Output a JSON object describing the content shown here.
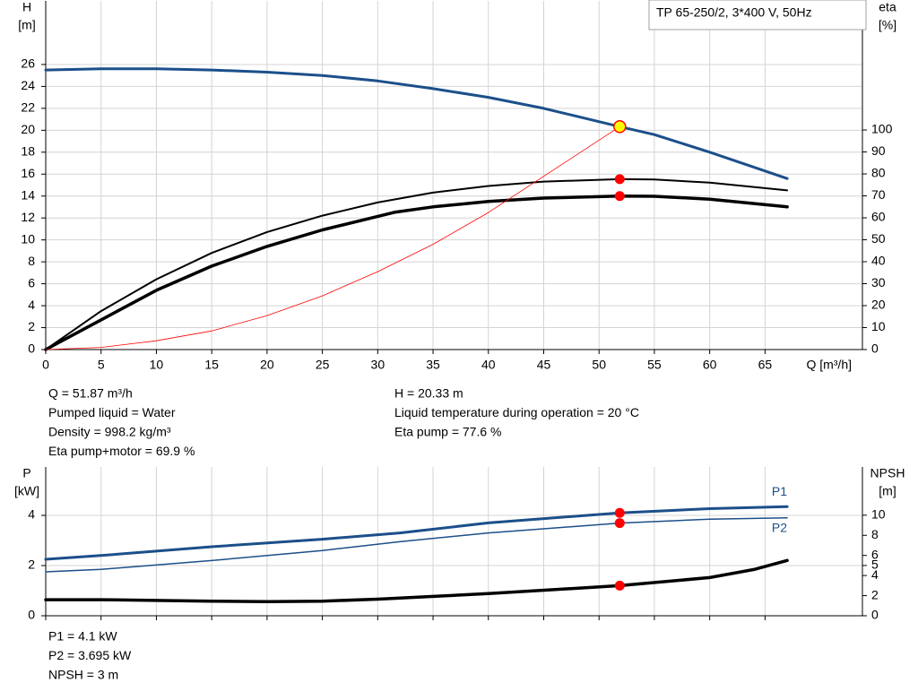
{
  "chart_data": [
    {
      "type": "line",
      "title": "TP 65-250/2, 3*400 V, 50Hz",
      "x_label": "Q [m³/h]",
      "y_label": "H",
      "y_unit": "[m]",
      "y2_label": "eta",
      "y2_unit": "[%]",
      "xlim": [
        0,
        73.8
      ],
      "xticks": [
        0,
        5,
        10,
        15,
        20,
        25,
        30,
        35,
        40,
        45,
        50,
        55,
        60,
        65
      ],
      "ylim": [
        0,
        31.8
      ],
      "yticks": [
        0,
        2,
        4,
        6,
        8,
        10,
        12,
        14,
        16,
        18,
        20,
        22,
        24,
        26
      ],
      "y2lim": [
        0,
        158.8
      ],
      "y2ticks": [
        0,
        10,
        20,
        30,
        40,
        50,
        60,
        70,
        80,
        90,
        100
      ],
      "grid": true,
      "series": [
        {
          "color": "#1b4f8a",
          "width": 3,
          "x": [
            0,
            5,
            10,
            15,
            20,
            25,
            30,
            35,
            40,
            45,
            51.87,
            55,
            60,
            67
          ],
          "values": [
            25.5,
            25.6,
            25.6,
            25.5,
            25.3,
            25.0,
            24.5,
            23.8,
            23.0,
            22.0,
            20.33,
            19.6,
            18.0,
            15.6
          ]
        },
        {
          "color": "#000000",
          "width": 2,
          "axis": "y2",
          "x": [
            0,
            5,
            10,
            15,
            20,
            25,
            30,
            35,
            40,
            45,
            51.87,
            55,
            60,
            67
          ],
          "values": [
            0,
            17.5,
            32,
            44,
            53.5,
            61,
            67,
            71.5,
            74.5,
            76.5,
            77.6,
            77.5,
            76,
            72.5
          ]
        },
        {
          "color": "#000000",
          "width": 3.5,
          "axis": "y2",
          "x": [
            0,
            5,
            10,
            15,
            20,
            25,
            31.5,
            35,
            40,
            45,
            51.87,
            55,
            60,
            67
          ],
          "values": [
            0,
            13.5,
            27,
            38,
            47,
            54.5,
            62.5,
            65,
            67.5,
            69,
            69.9,
            69.8,
            68.5,
            65
          ]
        },
        {
          "color": "#ff0000",
          "width": 0.8,
          "x": [
            0,
            5,
            10,
            15,
            20,
            25,
            30,
            35,
            40,
            45,
            51.87
          ],
          "values": [
            0,
            0.2,
            0.8,
            1.7,
            3.1,
            4.9,
            7.1,
            9.6,
            12.5,
            15.8,
            20.33
          ]
        }
      ],
      "points": [
        {
          "x": 51.87,
          "y": 20.33,
          "color": "#ffff00"
        },
        {
          "x": 51.87,
          "y": 77.6,
          "axis": "y2",
          "color": "#ff0000"
        },
        {
          "x": 51.87,
          "y": 69.9,
          "axis": "y2",
          "color": "#ff0000"
        }
      ],
      "info": [
        [
          "Q = 51.87 m³/h",
          "Pumped liquid = Water",
          "Density = 998.2 kg/m³",
          "Eta pump+motor = 69.9 %"
        ],
        [
          "H = 20.33 m",
          "Liquid temperature during operation = 20 °C",
          "Eta pump = 77.6 %"
        ]
      ]
    },
    {
      "type": "line",
      "y_label": "P",
      "y_unit": "[kW]",
      "y2_label": "NPSH",
      "y2_unit": "[m]",
      "xlim": [
        0,
        73.8
      ],
      "xticks": [
        0,
        5,
        10,
        15,
        20,
        25,
        30,
        35,
        40,
        45,
        50,
        55,
        60,
        65
      ],
      "x_tick_labels": false,
      "ylim": [
        0,
        5.93
      ],
      "yticks": [
        0,
        2,
        4
      ],
      "y2lim": [
        0,
        14.8
      ],
      "y2ticks": [
        0,
        2,
        4,
        5,
        6,
        8,
        10
      ],
      "grid": true,
      "series": [
        {
          "name": "P1",
          "color": "#1b4f8a",
          "width": 3,
          "x": [
            0,
            5,
            15,
            25,
            32,
            40,
            51.87,
            60,
            67
          ],
          "values": [
            2.25,
            2.4,
            2.75,
            3.05,
            3.3,
            3.7,
            4.1,
            4.27,
            4.35
          ]
        },
        {
          "name": "P2",
          "color": "#1b4f8a",
          "width": 1.5,
          "x": [
            0,
            5,
            15,
            25,
            32,
            40,
            51.87,
            60,
            67
          ],
          "values": [
            1.75,
            1.85,
            2.2,
            2.6,
            2.95,
            3.3,
            3.695,
            3.85,
            3.9
          ]
        },
        {
          "color": "#000000",
          "width": 3.5,
          "axis": "y2",
          "x": [
            0,
            5,
            15,
            20,
            25,
            30,
            40,
            51.87,
            60,
            64,
            67
          ],
          "values": [
            1.6,
            1.6,
            1.45,
            1.4,
            1.45,
            1.65,
            2.2,
            3.0,
            3.8,
            4.6,
            5.5
          ]
        }
      ],
      "points": [
        {
          "x": 51.87,
          "y": 4.1,
          "color": "#ff0000"
        },
        {
          "x": 51.87,
          "y": 3.695,
          "color": "#ff0000"
        },
        {
          "x": 51.87,
          "y": 3,
          "axis": "y2",
          "color": "#ff0000"
        }
      ],
      "info": [
        [
          "P1 = 4.1 kW",
          "P2 = 3.695 kW",
          "NPSH = 3 m"
        ]
      ]
    }
  ]
}
